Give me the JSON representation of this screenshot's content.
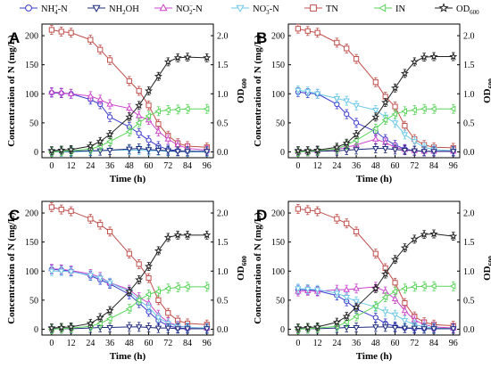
{
  "figure": {
    "legend": [
      {
        "key": "nh4",
        "label_main": "NH",
        "label_sub": "4",
        "label_sup": "+",
        "label_tail": "-N",
        "color": "#3b3bcc",
        "marker": "circle"
      },
      {
        "key": "nh2oh",
        "label_main": "NH",
        "label_sub": "2",
        "label_sup": "",
        "label_tail": "OH",
        "color": "#1e2a7a",
        "marker": "triangle-down"
      },
      {
        "key": "no2",
        "label_main": "NO",
        "label_sub": "2",
        "label_sup": "−",
        "label_tail": "-N",
        "color": "#cc44cc",
        "marker": "triangle-up"
      },
      {
        "key": "no3",
        "label_main": "NO",
        "label_sub": "3",
        "label_sup": "−",
        "label_tail": "-N",
        "color": "#6cc8e8",
        "marker": "triangle-down"
      },
      {
        "key": "tn",
        "label_main": "TN",
        "label_sub": "",
        "label_sup": "",
        "label_tail": "",
        "color": "#c0504d",
        "marker": "square"
      },
      {
        "key": "in",
        "label_main": "IN",
        "label_sub": "",
        "label_sup": "",
        "label_tail": "",
        "color": "#5bd45b",
        "marker": "triangle-left"
      },
      {
        "key": "od",
        "label_main": "OD",
        "label_sub": "600",
        "label_sup": "",
        "label_tail": "",
        "color": "#222222",
        "marker": "star"
      }
    ],
    "axis_titles": {
      "x": "Time (h)",
      "y_left": "Concentration of N (mg/L)",
      "y_right_main": "OD",
      "y_right_sub": "600"
    }
  },
  "chart_data": [
    {
      "panel": "A",
      "type": "line",
      "x": [
        0,
        6,
        12,
        24,
        30,
        36,
        48,
        54,
        60,
        66,
        72,
        78,
        84,
        96
      ],
      "xticks": [
        "0",
        "12",
        "24",
        "36",
        "48",
        "60",
        "72",
        "84",
        "96"
      ],
      "xlim": [
        -6,
        100
      ],
      "ylim_left": [
        -10,
        220
      ],
      "yticks_left": [
        "0",
        "50",
        "100",
        "150",
        "200"
      ],
      "ylim_right": [
        -0.1,
        2.2
      ],
      "yticks_right": [
        "0.0",
        "0.5",
        "1.0",
        "1.5",
        "2.0"
      ],
      "series": [
        {
          "key": "tn",
          "axis": "left",
          "values": [
            210,
            207,
            205,
            193,
            176,
            158,
            122,
            105,
            80,
            48,
            28,
            15,
            10,
            8
          ]
        },
        {
          "key": "nh4",
          "axis": "left",
          "values": [
            102,
            101,
            100,
            90,
            82,
            60,
            43,
            32,
            20,
            10,
            4,
            2,
            1,
            1
          ]
        },
        {
          "key": "no2",
          "axis": "left",
          "values": [
            103,
            102,
            100,
            96,
            90,
            82,
            75,
            62,
            55,
            35,
            22,
            12,
            6,
            3
          ]
        },
        {
          "key": "no3",
          "axis": "left",
          "values": [
            0,
            0,
            0,
            1,
            2,
            3,
            3,
            3,
            2,
            2,
            1,
            1,
            0,
            0
          ]
        },
        {
          "key": "nh2oh",
          "axis": "left",
          "values": [
            1,
            1,
            1,
            2,
            2,
            3,
            5,
            6,
            4,
            3,
            2,
            1,
            1,
            1
          ]
        },
        {
          "key": "in",
          "axis": "left",
          "values": [
            0,
            1,
            2,
            5,
            10,
            18,
            35,
            50,
            62,
            70,
            72,
            73,
            74,
            74
          ]
        },
        {
          "key": "od",
          "axis": "right",
          "values": [
            0.02,
            0.03,
            0.04,
            0.1,
            0.18,
            0.3,
            0.6,
            0.8,
            1.05,
            1.3,
            1.55,
            1.62,
            1.63,
            1.62
          ]
        }
      ]
    },
    {
      "panel": "B",
      "type": "line",
      "x": [
        0,
        6,
        12,
        24,
        30,
        36,
        48,
        54,
        60,
        66,
        72,
        78,
        84,
        96
      ],
      "xticks": [
        "0",
        "12",
        "24",
        "36",
        "48",
        "60",
        "72",
        "84",
        "96"
      ],
      "xlim": [
        -6,
        100
      ],
      "ylim_left": [
        -10,
        220
      ],
      "yticks_left": [
        "0",
        "50",
        "100",
        "150",
        "200"
      ],
      "ylim_right": [
        -0.1,
        2.2
      ],
      "yticks_right": [
        "0.0",
        "0.5",
        "1.0",
        "1.5",
        "2.0"
      ],
      "series": [
        {
          "key": "tn",
          "axis": "left",
          "values": [
            212,
            208,
            205,
            188,
            178,
            160,
            120,
            95,
            78,
            45,
            22,
            12,
            8,
            7
          ]
        },
        {
          "key": "nh4",
          "axis": "left",
          "values": [
            103,
            101,
            100,
            82,
            65,
            50,
            35,
            22,
            12,
            5,
            2,
            1,
            1,
            1
          ]
        },
        {
          "key": "no3",
          "axis": "left",
          "values": [
            106,
            104,
            100,
            92,
            88,
            80,
            72,
            60,
            50,
            30,
            18,
            8,
            4,
            2
          ]
        },
        {
          "key": "no2",
          "axis": "left",
          "values": [
            1,
            1,
            2,
            4,
            8,
            12,
            22,
            16,
            8,
            4,
            2,
            1,
            1,
            1
          ]
        },
        {
          "key": "nh2oh",
          "axis": "left",
          "values": [
            1,
            1,
            1,
            2,
            3,
            4,
            6,
            6,
            4,
            3,
            2,
            1,
            1,
            1
          ]
        },
        {
          "key": "in",
          "axis": "left",
          "values": [
            0,
            1,
            2,
            5,
            12,
            20,
            40,
            55,
            65,
            70,
            72,
            74,
            74,
            74
          ]
        },
        {
          "key": "od",
          "axis": "right",
          "values": [
            0.02,
            0.02,
            0.03,
            0.08,
            0.15,
            0.3,
            0.6,
            0.85,
            1.1,
            1.35,
            1.55,
            1.63,
            1.64,
            1.64
          ]
        }
      ]
    },
    {
      "panel": "C",
      "type": "line",
      "x": [
        0,
        6,
        12,
        24,
        30,
        36,
        48,
        54,
        60,
        66,
        72,
        78,
        84,
        96
      ],
      "xticks": [
        "0",
        "12",
        "24",
        "36",
        "48",
        "60",
        "72",
        "84",
        "96"
      ],
      "xlim": [
        -6,
        100
      ],
      "ylim_left": [
        -10,
        220
      ],
      "yticks_left": [
        "0",
        "50",
        "100",
        "150",
        "200"
      ],
      "ylim_right": [
        -0.1,
        2.2
      ],
      "yticks_right": [
        "0.0",
        "0.5",
        "1.0",
        "1.5",
        "2.0"
      ],
      "series": [
        {
          "key": "tn",
          "axis": "left",
          "values": [
            210,
            206,
            203,
            190,
            180,
            168,
            130,
            112,
            88,
            50,
            28,
            15,
            10,
            8
          ]
        },
        {
          "key": "nh4",
          "axis": "left",
          "values": [
            103,
            102,
            100,
            92,
            85,
            78,
            60,
            45,
            30,
            15,
            6,
            2,
            1,
            1
          ]
        },
        {
          "key": "no2",
          "axis": "left",
          "values": [
            104,
            103,
            101,
            95,
            90,
            80,
            68,
            55,
            45,
            25,
            12,
            6,
            3,
            2
          ]
        },
        {
          "key": "no3",
          "axis": "left",
          "values": [
            100,
            100,
            99,
            93,
            88,
            80,
            65,
            50,
            38,
            20,
            10,
            5,
            3,
            2
          ]
        },
        {
          "key": "nh2oh",
          "axis": "left",
          "values": [
            1,
            1,
            1,
            2,
            3,
            3,
            4,
            4,
            3,
            2,
            2,
            1,
            1,
            1
          ]
        },
        {
          "key": "in",
          "axis": "left",
          "values": [
            0,
            1,
            2,
            5,
            10,
            18,
            35,
            50,
            60,
            65,
            70,
            72,
            73,
            73
          ]
        },
        {
          "key": "od",
          "axis": "right",
          "values": [
            0.02,
            0.03,
            0.04,
            0.1,
            0.2,
            0.32,
            0.65,
            0.85,
            1.08,
            1.35,
            1.58,
            1.62,
            1.62,
            1.62
          ]
        }
      ]
    },
    {
      "panel": "D",
      "type": "line",
      "x": [
        0,
        6,
        12,
        24,
        30,
        36,
        48,
        54,
        60,
        66,
        72,
        78,
        84,
        96
      ],
      "xticks": [
        "0",
        "12",
        "24",
        "36",
        "48",
        "60",
        "72",
        "84",
        "96"
      ],
      "xlim": [
        -6,
        100
      ],
      "ylim_left": [
        -10,
        220
      ],
      "yticks_left": [
        "0",
        "50",
        "100",
        "150",
        "200"
      ],
      "ylim_right": [
        -0.1,
        2.2
      ],
      "yticks_right": [
        "0.0",
        "0.5",
        "1.0",
        "1.5",
        "2.0"
      ],
      "series": [
        {
          "key": "tn",
          "axis": "left",
          "values": [
            207,
            205,
            203,
            190,
            182,
            168,
            130,
            105,
            80,
            45,
            22,
            12,
            8,
            6
          ]
        },
        {
          "key": "nh4",
          "axis": "left",
          "values": [
            68,
            68,
            66,
            58,
            48,
            35,
            20,
            10,
            5,
            2,
            1,
            1,
            1,
            1
          ]
        },
        {
          "key": "no2",
          "axis": "left",
          "values": [
            65,
            66,
            65,
            68,
            68,
            70,
            73,
            65,
            52,
            32,
            16,
            8,
            4,
            2
          ]
        },
        {
          "key": "no3",
          "axis": "left",
          "values": [
            70,
            69,
            68,
            62,
            55,
            48,
            38,
            30,
            25,
            15,
            8,
            4,
            2,
            1
          ]
        },
        {
          "key": "nh2oh",
          "axis": "left",
          "values": [
            1,
            1,
            1,
            2,
            3,
            3,
            4,
            4,
            3,
            2,
            2,
            1,
            1,
            1
          ]
        },
        {
          "key": "in",
          "axis": "left",
          "values": [
            0,
            1,
            2,
            5,
            12,
            22,
            40,
            55,
            65,
            70,
            73,
            74,
            74,
            74
          ]
        },
        {
          "key": "od",
          "axis": "right",
          "values": [
            0.02,
            0.03,
            0.04,
            0.12,
            0.22,
            0.38,
            0.7,
            0.95,
            1.2,
            1.4,
            1.55,
            1.63,
            1.64,
            1.6
          ]
        }
      ]
    }
  ]
}
